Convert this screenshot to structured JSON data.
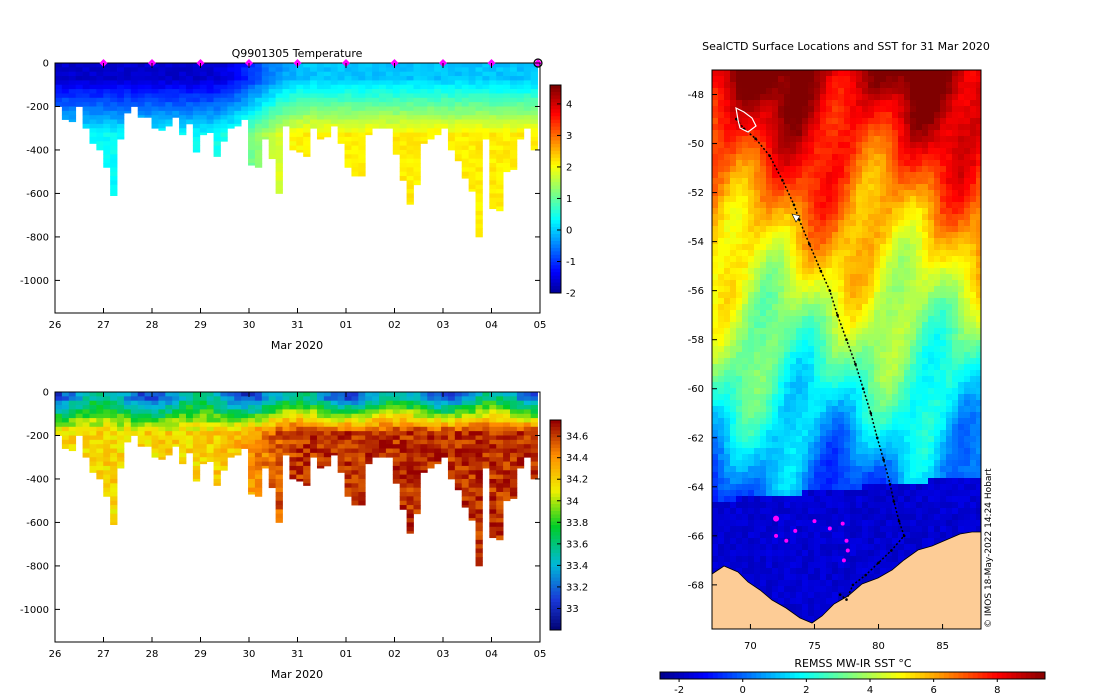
{
  "chart_data": [
    {
      "type": "heatmap",
      "variable": "temperature",
      "title": "Q9901305  Temperature",
      "xlabel": "Mar 2020",
      "x_ticks": [
        "26",
        "27",
        "28",
        "29",
        "30",
        "31",
        "01",
        "02",
        "03",
        "04",
        "05"
      ],
      "x_range": [
        26,
        36
      ],
      "y_ticks": [
        "0",
        "-200",
        "-400",
        "-600",
        "-800",
        "-1000"
      ],
      "ylim": [
        -1150,
        0
      ],
      "colorbar_ticks": [
        "4",
        "3",
        "2",
        "1",
        "0",
        "-1",
        "-2"
      ],
      "colorbar_range": [
        -2,
        4.6
      ],
      "surface_markers_x": [
        27,
        28,
        29,
        30,
        31,
        32,
        33,
        34,
        35,
        36
      ],
      "profile_depths_m": [
        200,
        260,
        270,
        200,
        300,
        370,
        400,
        480,
        610,
        350,
        230,
        200,
        250,
        250,
        300,
        310,
        290,
        250,
        330,
        280,
        410,
        330,
        320,
        430,
        360,
        300,
        290,
        260,
        470,
        480,
        350,
        440,
        600,
        290,
        400,
        410,
        430,
        300,
        350,
        340,
        290,
        370,
        480,
        520,
        520,
        330,
        300,
        300,
        300,
        420,
        540,
        650,
        560,
        370,
        350,
        330,
        300,
        400,
        450,
        530,
        590,
        800,
        350,
        670,
        680,
        500,
        490,
        350,
        300,
        400
      ]
    },
    {
      "type": "heatmap",
      "variable": "salinity",
      "title": "",
      "xlabel": "Mar 2020",
      "x_ticks": [
        "26",
        "27",
        "28",
        "29",
        "30",
        "31",
        "01",
        "02",
        "03",
        "04",
        "05"
      ],
      "x_range": [
        26,
        36
      ],
      "y_ticks": [
        "0",
        "-200",
        "-400",
        "-600",
        "-800",
        "-1000"
      ],
      "ylim": [
        -1150,
        0
      ],
      "colorbar_ticks": [
        "34.6",
        "34.4",
        "34.2",
        "34",
        "33.8",
        "33.6",
        "33.4",
        "33.2",
        "33"
      ],
      "colorbar_range": [
        32.8,
        34.75
      ]
    },
    {
      "type": "heatmap",
      "variable": "sea surface temperature map",
      "title": "SealCTD Surface Locations and SST for 31 Mar 2020",
      "x_ticks": [
        "70",
        "75",
        "80",
        "85"
      ],
      "xlim": [
        67,
        88
      ],
      "y_ticks": [
        "-48",
        "-50",
        "-52",
        "-54",
        "-56",
        "-58",
        "-60",
        "-62",
        "-64",
        "-66",
        "-68"
      ],
      "ylim": [
        -69.8,
        -47
      ],
      "colorbar_label": "REMSS MW-IR SST °C",
      "colorbar_ticks": [
        "-2",
        "0",
        "2",
        "4",
        "6",
        "8"
      ],
      "colorbar_range": [
        -2.6,
        9.5
      ],
      "track_points": [
        [
          68.9,
          -49.0
        ],
        [
          69.5,
          -49.4
        ],
        [
          70.4,
          -49.8
        ],
        [
          71.5,
          -50.5
        ],
        [
          72.5,
          -51.5
        ],
        [
          73.4,
          -52.5
        ],
        [
          73.8,
          -53.1
        ],
        [
          74.6,
          -54.1
        ],
        [
          75.5,
          -55.2
        ],
        [
          76.2,
          -56.0
        ],
        [
          76.8,
          -57.0
        ],
        [
          77.5,
          -58.0
        ],
        [
          78.2,
          -59.0
        ],
        [
          78.8,
          -60.0
        ],
        [
          79.4,
          -61.0
        ],
        [
          79.9,
          -62.0
        ],
        [
          80.4,
          -62.9
        ],
        [
          80.9,
          -63.9
        ],
        [
          81.2,
          -64.6
        ],
        [
          81.6,
          -65.4
        ],
        [
          82.0,
          -66.0
        ],
        [
          81.0,
          -66.6
        ],
        [
          80.0,
          -67.1
        ],
        [
          79.0,
          -67.6
        ],
        [
          78.0,
          -68.0
        ],
        [
          77.5,
          -68.6
        ],
        [
          77.0,
          -68.4
        ]
      ],
      "sealctd_markers": [
        [
          72.0,
          -65.3
        ],
        [
          73.5,
          -65.8
        ],
        [
          75.0,
          -65.4
        ],
        [
          76.2,
          -65.7
        ],
        [
          77.2,
          -65.5
        ],
        [
          77.5,
          -66.2
        ],
        [
          77.6,
          -66.6
        ],
        [
          77.3,
          -67.0
        ],
        [
          72.0,
          -66.0
        ],
        [
          72.8,
          -66.2
        ]
      ]
    }
  ],
  "footer_credit": "© IMOS 18-May-2022 14:24 Hobart"
}
